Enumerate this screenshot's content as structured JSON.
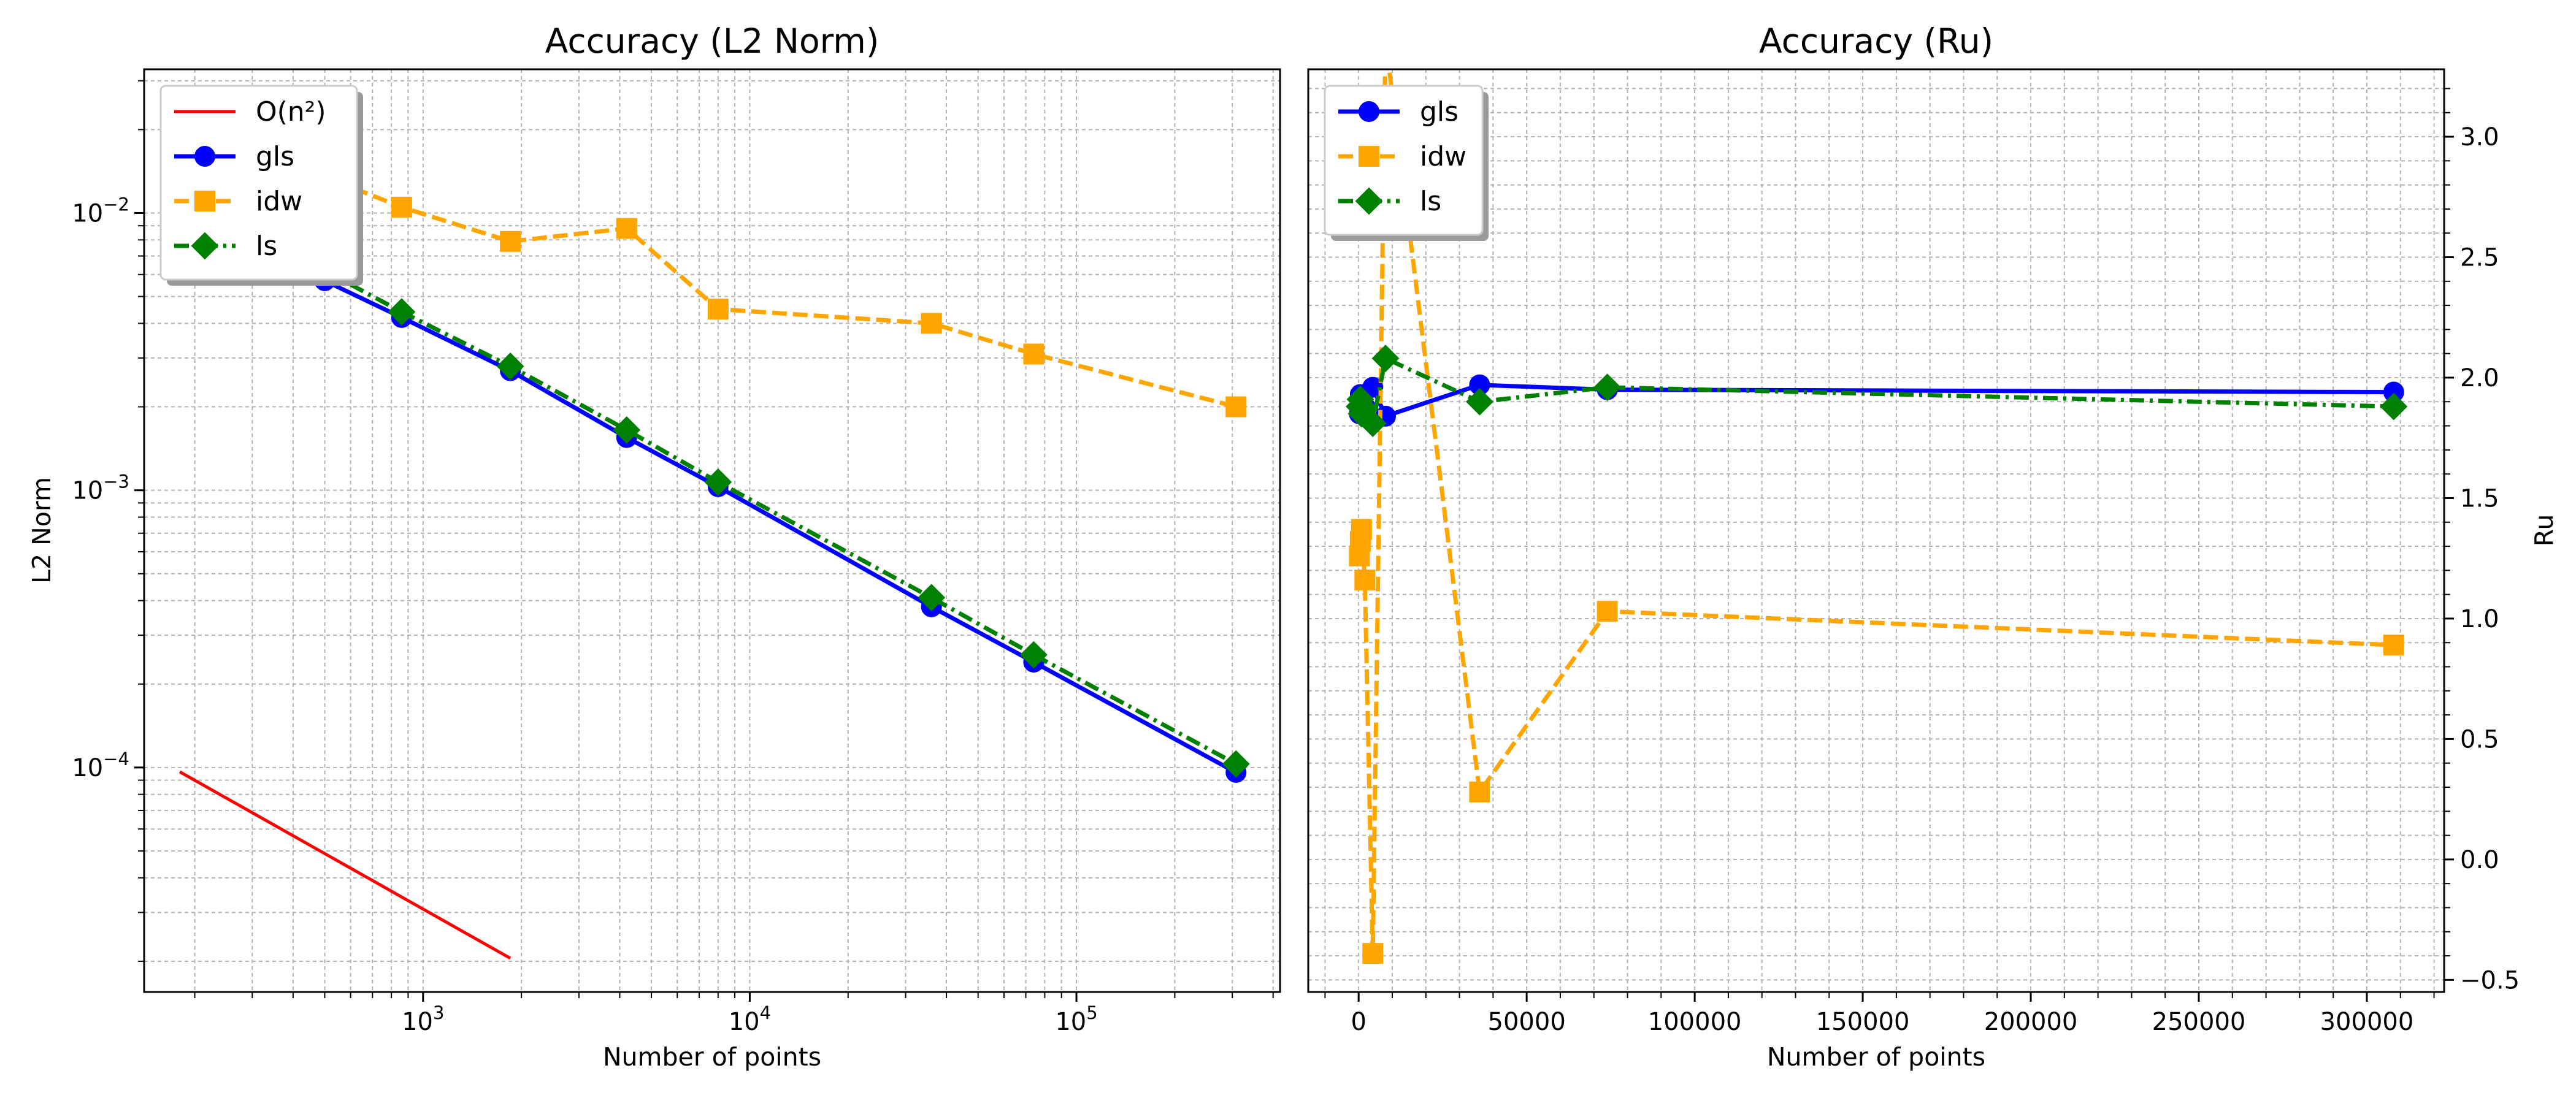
{
  "chart_data": [
    {
      "type": "line",
      "title": "Accuracy (L2 Norm)",
      "xlabel": "Number of points",
      "ylabel": "L2 Norm",
      "xscale": "log",
      "yscale": "log",
      "xlim": [
        140,
        420000
      ],
      "ylim": [
        1.55e-05,
        0.033
      ],
      "grid": true,
      "legend_position": "top-left",
      "xticks": [
        {
          "value": 1000,
          "base": "10",
          "exp": "3"
        },
        {
          "value": 10000,
          "base": "10",
          "exp": "4"
        },
        {
          "value": 100000,
          "base": "10",
          "exp": "5"
        }
      ],
      "yticks": [
        {
          "value": 0.0001,
          "base": "10",
          "exp": "−4"
        },
        {
          "value": 0.001,
          "base": "10",
          "exp": "−3"
        },
        {
          "value": 0.01,
          "base": "10",
          "exp": "−2"
        }
      ],
      "series": [
        {
          "name": "O(n²)",
          "color": "#ff0000",
          "linestyle": "solid",
          "marker": "none",
          "x": [
            180,
            1850
          ],
          "y": [
            9.65e-05,
            2.05e-05
          ]
        },
        {
          "name": "gls",
          "color": "#0000ff",
          "linestyle": "solid",
          "marker": "circle",
          "x": [
            180,
            230,
            500,
            860,
            1850,
            4200,
            8000,
            36000,
            74000,
            308000
          ],
          "y": [
            0.0125,
            0.0103,
            0.0057,
            0.0042,
            0.0027,
            0.00155,
            0.00103,
            0.00038,
            0.00024,
            9.6e-05
          ]
        },
        {
          "name": "idw",
          "color": "#ffa500",
          "linestyle": "dashed",
          "marker": "square",
          "x": [
            180,
            230,
            500,
            860,
            1850,
            4200,
            8000,
            36000,
            74000,
            308000
          ],
          "y": [
            0.022,
            0.019,
            0.0135,
            0.0105,
            0.0079,
            0.0088,
            0.0045,
            0.004,
            0.0031,
            0.002
          ]
        },
        {
          "name": "ls",
          "color": "#008000",
          "linestyle": "dashdot",
          "marker": "diamond",
          "x": [
            180,
            230,
            500,
            860,
            1850,
            4200,
            8000,
            36000,
            74000,
            308000
          ],
          "y": [
            0.0135,
            0.011,
            0.0062,
            0.0044,
            0.0028,
            0.00165,
            0.00107,
            0.00041,
            0.000255,
            0.000103
          ]
        }
      ]
    },
    {
      "type": "line",
      "title": "Accuracy (Ru)",
      "xlabel": "Number of points",
      "ylabel": "Ru",
      "yaxis_side": "right",
      "xlim": [
        -15000,
        323000
      ],
      "ylim": [
        -0.55,
        3.28
      ],
      "grid": true,
      "legend_position": "top-left",
      "xticks": [
        {
          "value": 0,
          "label": "0"
        },
        {
          "value": 50000,
          "label": "50000"
        },
        {
          "value": 100000,
          "label": "100000"
        },
        {
          "value": 150000,
          "label": "150000"
        },
        {
          "value": 200000,
          "label": "200000"
        },
        {
          "value": 250000,
          "label": "250000"
        },
        {
          "value": 300000,
          "label": "300000"
        }
      ],
      "yticks": [
        {
          "value": -0.5,
          "label": "−0.5"
        },
        {
          "value": 0.0,
          "label": "0.0"
        },
        {
          "value": 0.5,
          "label": "0.5"
        },
        {
          "value": 1.0,
          "label": "1.0"
        },
        {
          "value": 1.5,
          "label": "1.5"
        },
        {
          "value": 2.0,
          "label": "2.0"
        },
        {
          "value": 2.5,
          "label": "2.5"
        },
        {
          "value": 3.0,
          "label": "3.0"
        }
      ],
      "series": [
        {
          "name": "gls",
          "color": "#0000ff",
          "linestyle": "solid",
          "marker": "circle",
          "x": [
            230,
            500,
            860,
            1850,
            4200,
            8000,
            36000,
            74000,
            308000
          ],
          "y": [
            1.85,
            1.93,
            1.85,
            1.88,
            1.96,
            1.84,
            1.97,
            1.95,
            1.94
          ]
        },
        {
          "name": "idw",
          "color": "#ffa500",
          "linestyle": "dashed",
          "marker": "square",
          "x": [
            230,
            500,
            860,
            1850,
            4200,
            8000,
            36000,
            74000,
            308000
          ],
          "y": [
            1.26,
            1.32,
            1.37,
            1.16,
            -0.39,
            3.4,
            0.28,
            1.03,
            0.89
          ]
        },
        {
          "name": "ls",
          "color": "#008000",
          "linestyle": "dashdot",
          "marker": "diamond",
          "x": [
            230,
            500,
            860,
            1850,
            4200,
            8000,
            36000,
            74000,
            308000
          ],
          "y": [
            1.88,
            1.91,
            1.85,
            1.87,
            1.81,
            2.08,
            1.9,
            1.96,
            1.88
          ]
        }
      ]
    }
  ]
}
